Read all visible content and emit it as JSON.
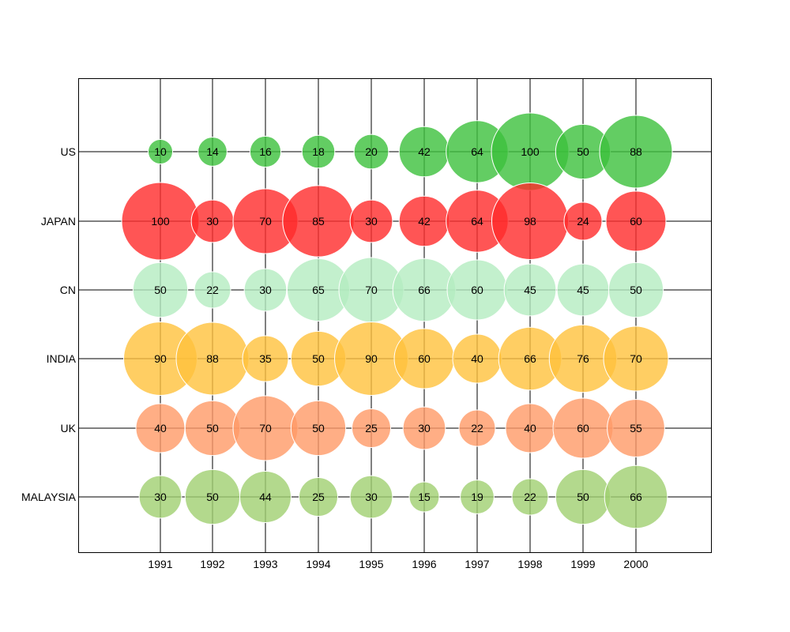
{
  "chart_data": {
    "type": "bubble",
    "title": "",
    "xlabel": "",
    "ylabel": "",
    "grid": true,
    "x": [
      "1991",
      "1992",
      "1993",
      "1994",
      "1995",
      "1996",
      "1997",
      "1998",
      "1999",
      "2000"
    ],
    "series": [
      {
        "name": "US",
        "color": "#3cc03c",
        "values": [
          10,
          14,
          16,
          18,
          20,
          42,
          64,
          100,
          50,
          88
        ]
      },
      {
        "name": "JAPAN",
        "color": "#ff2a2a",
        "values": [
          100,
          30,
          70,
          85,
          30,
          42,
          64,
          98,
          24,
          60
        ]
      },
      {
        "name": "CN",
        "color": "#b4ecc0",
        "values": [
          50,
          22,
          30,
          65,
          70,
          66,
          60,
          45,
          45,
          50
        ]
      },
      {
        "name": "INDIA",
        "color": "#ffc23c",
        "values": [
          90,
          88,
          35,
          50,
          90,
          60,
          40,
          66,
          76,
          70
        ]
      },
      {
        "name": "UK",
        "color": "#ff9a66",
        "values": [
          40,
          50,
          70,
          50,
          25,
          30,
          22,
          40,
          60,
          55
        ]
      },
      {
        "name": "MALAYSIA",
        "color": "#a0d070",
        "values": [
          30,
          50,
          44,
          25,
          30,
          15,
          19,
          22,
          50,
          66
        ]
      }
    ]
  }
}
